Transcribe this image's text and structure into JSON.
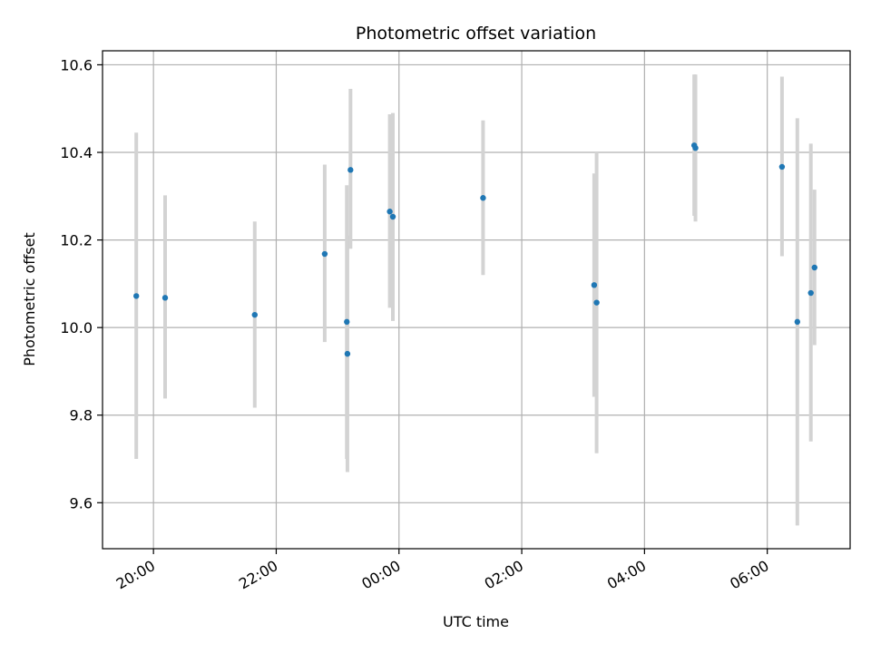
{
  "chart_data": {
    "type": "scatter",
    "title": "Photometric offset variation",
    "xlabel": "UTC time",
    "ylabel": "Photometric offset",
    "x_unit": "hours",
    "x_tick_hours": [
      20,
      22,
      24,
      26,
      28,
      30
    ],
    "x_tick_labels": [
      "20:00",
      "22:00",
      "00:00",
      "02:00",
      "04:00",
      "06:00"
    ],
    "xlim": [
      19.17,
      31.35
    ],
    "y_ticks": [
      9.6,
      9.8,
      10.0,
      10.2,
      10.4,
      10.6
    ],
    "y_tick_labels": [
      "9.6",
      "9.8",
      "10.0",
      "10.2",
      "10.4",
      "10.6"
    ],
    "ylim": [
      9.495,
      10.632
    ],
    "grid": true,
    "colors": {
      "point": "#1f77b4",
      "errorbar": "#d3d3d3",
      "grid": "#b0b0b0"
    },
    "points": [
      {
        "x": 19.72,
        "y": 10.072,
        "lo": 9.7,
        "hi": 10.445
      },
      {
        "x": 20.19,
        "y": 10.068,
        "lo": 9.838,
        "hi": 10.302
      },
      {
        "x": 21.65,
        "y": 10.029,
        "lo": 9.817,
        "hi": 10.242
      },
      {
        "x": 22.79,
        "y": 10.168,
        "lo": 9.967,
        "hi": 10.372
      },
      {
        "x": 23.15,
        "y": 10.013,
        "lo": 9.7,
        "hi": 10.325
      },
      {
        "x": 23.16,
        "y": 9.94,
        "lo": 9.67,
        "hi": 10.21
      },
      {
        "x": 23.21,
        "y": 10.36,
        "lo": 10.18,
        "hi": 10.545
      },
      {
        "x": 23.85,
        "y": 10.265,
        "lo": 10.045,
        "hi": 10.487
      },
      {
        "x": 23.9,
        "y": 10.253,
        "lo": 10.015,
        "hi": 10.49
      },
      {
        "x": 25.37,
        "y": 10.296,
        "lo": 10.12,
        "hi": 10.473
      },
      {
        "x": 27.18,
        "y": 10.097,
        "lo": 9.842,
        "hi": 10.352
      },
      {
        "x": 27.22,
        "y": 10.057,
        "lo": 9.713,
        "hi": 10.4
      },
      {
        "x": 28.81,
        "y": 10.416,
        "lo": 10.255,
        "hi": 10.578
      },
      {
        "x": 28.83,
        "y": 10.41,
        "lo": 10.242,
        "hi": 10.578
      },
      {
        "x": 30.24,
        "y": 10.367,
        "lo": 10.163,
        "hi": 10.573
      },
      {
        "x": 30.49,
        "y": 10.013,
        "lo": 9.548,
        "hi": 10.478
      },
      {
        "x": 30.71,
        "y": 10.079,
        "lo": 9.74,
        "hi": 10.42
      },
      {
        "x": 30.77,
        "y": 10.137,
        "lo": 9.96,
        "hi": 10.315
      }
    ]
  }
}
